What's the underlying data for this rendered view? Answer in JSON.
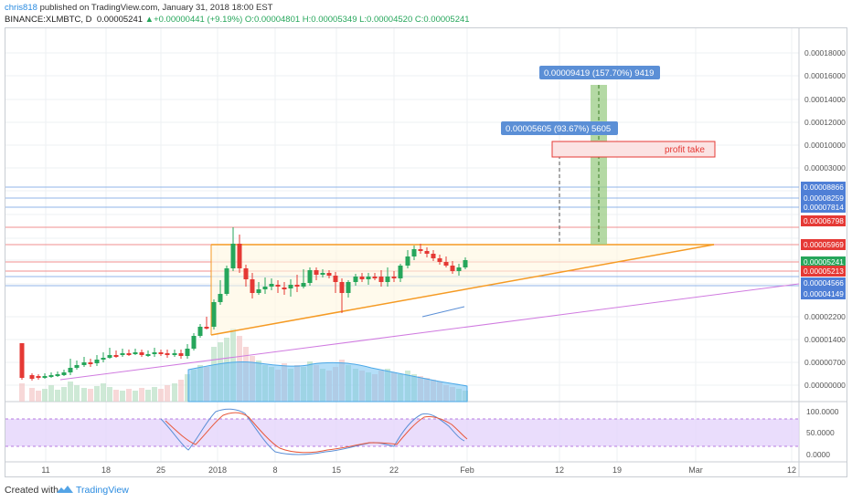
{
  "header": {
    "username": "chris818",
    "published": "published on TradingView.com, January 31, 2018 18:00 EST",
    "symbol": "BINANCE:XLMBTC, D",
    "last": "0.00005241",
    "up_arrow": "▲",
    "change": "+0.00000441 (+9.19%)",
    "ohlc": "O:0.00004801 H:0.00005349 L:0.00004520 C:0.00005241"
  },
  "price_axis": {
    "ticks": [
      "0.00018000",
      "0.00016000",
      "0.00014000",
      "0.00012000",
      "0.00010000",
      "0.00003000",
      "0.00002200",
      "0.00001400",
      "0.00000700",
      "0.00000000"
    ],
    "tags": [
      {
        "text": "0.00008866",
        "color": "#4f7fd6"
      },
      {
        "text": "0.00008259",
        "color": "#4f7fd6"
      },
      {
        "text": "0.00007814",
        "color": "#4f7fd6"
      },
      {
        "text": "0.00006798",
        "color": "#e53935"
      },
      {
        "text": "0.00005969",
        "color": "#e53935"
      },
      {
        "text": "0.00005241",
        "color": "#26a65b"
      },
      {
        "text": "0.00005213",
        "color": "#e53935"
      },
      {
        "text": "0.00004566",
        "color": "#4f7fd6"
      },
      {
        "text": "0.00004149",
        "color": "#4f7fd6"
      }
    ]
  },
  "oscillator_axis": {
    "ticks": [
      "100.0000",
      "50.0000",
      "0.0000"
    ]
  },
  "time_axis": {
    "labels": [
      "11",
      "18",
      "25",
      "2018",
      "8",
      "15",
      "22",
      "Feb",
      "12",
      "19",
      "Mar",
      "12"
    ]
  },
  "annotations": {
    "target_label": "0.00009419 (157.70%) 9419",
    "mid_label": "0.00005605 (93.67%) 5605",
    "profit_take": "profit take"
  },
  "footer": {
    "created": "Created with",
    "brand": "TradingView"
  },
  "colors": {
    "up": "#26a65b",
    "down": "#e53935",
    "triangle": "#f59a23",
    "axis_text": "#555555",
    "rsi_band": "#e5d4fb"
  }
}
